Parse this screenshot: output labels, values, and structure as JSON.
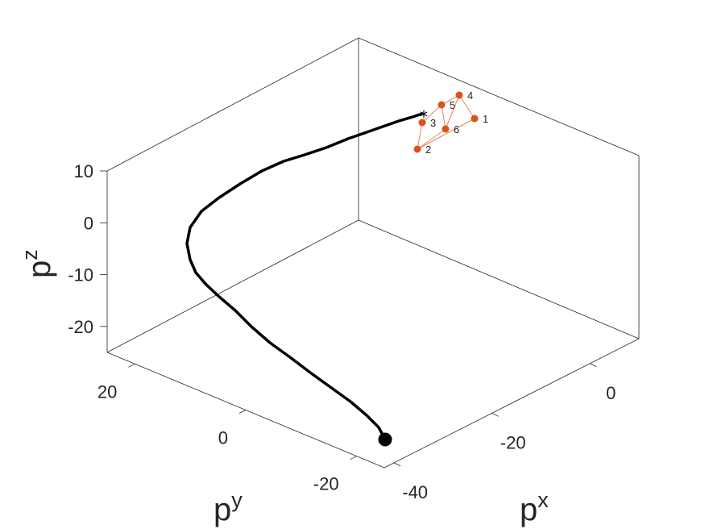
{
  "chart_data": {
    "type": "line3d",
    "axes": {
      "x": {
        "label_base": "p",
        "label_sup": "x",
        "ticks": [
          "-40",
          "-20",
          "0"
        ],
        "tick_values": [
          -40,
          -20,
          0
        ]
      },
      "y": {
        "label_base": "p",
        "label_sup": "y",
        "ticks": [
          "-20",
          "0",
          "20"
        ],
        "tick_values": [
          -20,
          0,
          20
        ]
      },
      "z": {
        "label_base": "p",
        "label_sup": "z",
        "ticks": [
          "-20",
          "-10",
          "0",
          "10"
        ],
        "tick_values": [
          -20,
          -10,
          0,
          10
        ]
      }
    },
    "grid": false,
    "trajectory": {
      "color": "#000000",
      "start_marker": "filled-circle",
      "end_marker": "asterisk",
      "screen_path": [
        [
          478,
          545
        ],
        [
          470,
          530
        ],
        [
          455,
          515
        ],
        [
          435,
          498
        ],
        [
          410,
          480
        ],
        [
          385,
          462
        ],
        [
          360,
          443
        ],
        [
          335,
          425
        ],
        [
          312,
          405
        ],
        [
          292,
          385
        ],
        [
          272,
          368
        ],
        [
          255,
          352
        ],
        [
          243,
          338
        ],
        [
          236,
          322
        ],
        [
          232,
          302
        ],
        [
          236,
          282
        ],
        [
          250,
          262
        ],
        [
          272,
          245
        ],
        [
          298,
          228
        ],
        [
          325,
          212
        ],
        [
          352,
          200
        ],
        [
          378,
          192
        ],
        [
          405,
          183
        ],
        [
          432,
          172
        ],
        [
          455,
          164
        ],
        [
          475,
          157
        ],
        [
          495,
          150
        ],
        [
          512,
          145
        ],
        [
          524,
          141
        ]
      ]
    },
    "formation": {
      "color": "#d95319",
      "nodes": [
        {
          "label": "1",
          "screen": [
            589,
            147
          ]
        },
        {
          "label": "2",
          "screen": [
            518,
            185
          ]
        },
        {
          "label": "3",
          "screen": [
            524,
            152
          ]
        },
        {
          "label": "4",
          "screen": [
            570,
            118
          ]
        },
        {
          "label": "5",
          "screen": [
            548,
            130
          ]
        },
        {
          "label": "6",
          "screen": [
            553,
            160
          ]
        }
      ],
      "edges": [
        [
          1,
          2
        ],
        [
          2,
          3
        ],
        [
          3,
          5
        ],
        [
          5,
          4
        ],
        [
          5,
          6
        ],
        [
          6,
          4
        ],
        [
          4,
          1
        ],
        [
          6,
          2
        ]
      ]
    }
  }
}
